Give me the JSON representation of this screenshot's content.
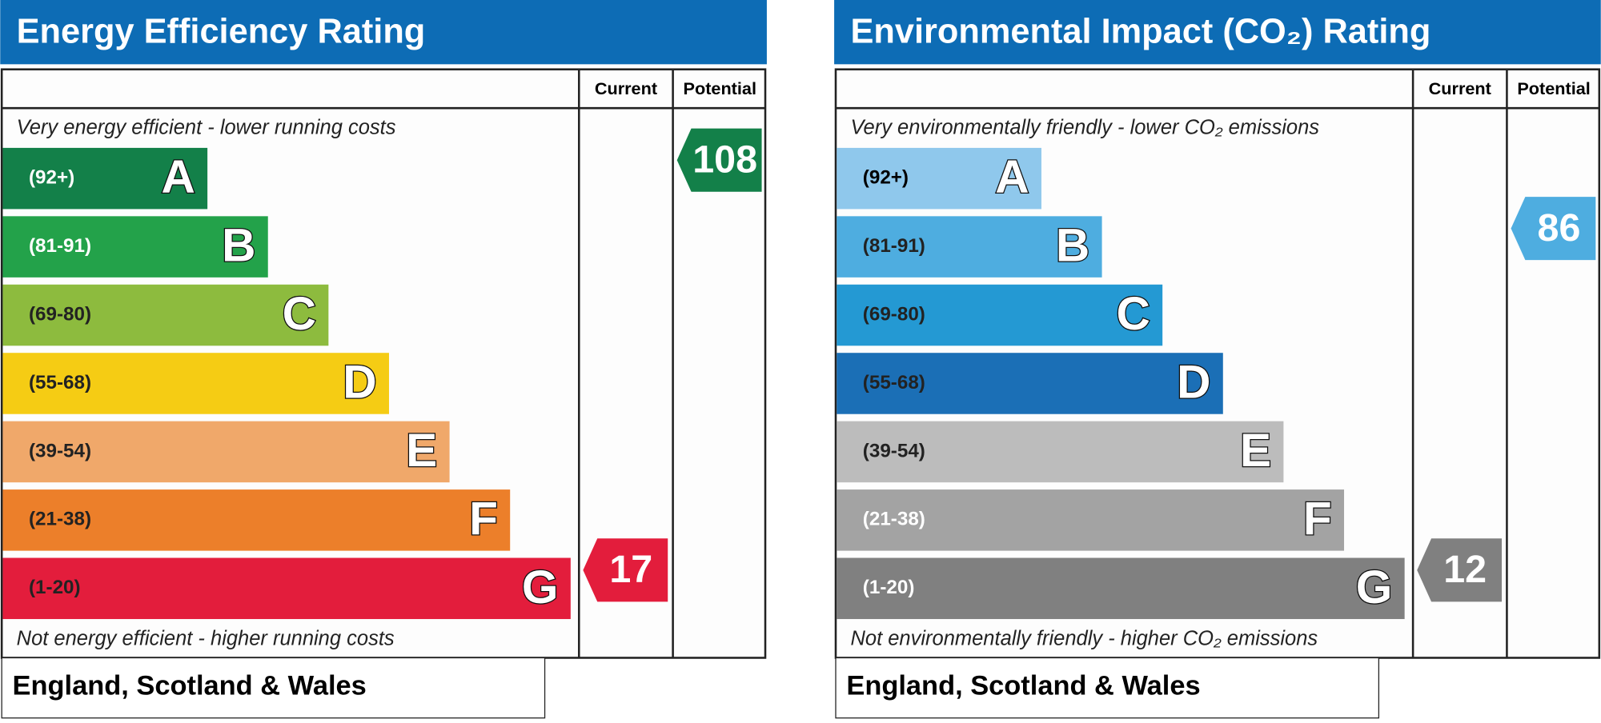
{
  "panels": [
    {
      "title": "Energy Efficiency Rating",
      "headers": [
        "Current",
        "Potential"
      ],
      "top_note": "Very energy efficient - lower running costs",
      "bottom_note": "Not energy efficient - higher running costs",
      "footer": "England, Scotland & Wales",
      "bands": [
        {
          "range": "(92+)",
          "letter": "A",
          "color": "#138049",
          "text_color": "#ffffff"
        },
        {
          "range": "(81-91)",
          "letter": "B",
          "color": "#23a24a",
          "text_color": "#ffffff"
        },
        {
          "range": "(69-80)",
          "letter": "C",
          "color": "#8dbb3e",
          "text_color": "#222222"
        },
        {
          "range": "(55-68)",
          "letter": "D",
          "color": "#f5cc14",
          "text_color": "#222222"
        },
        {
          "range": "(39-54)",
          "letter": "E",
          "color": "#f0a86a",
          "text_color": "#222222"
        },
        {
          "range": "(21-38)",
          "letter": "F",
          "color": "#ec7f2a",
          "text_color": "#222222"
        },
        {
          "range": "(1-20)",
          "letter": "G",
          "color": "#e31d3c",
          "text_color": "#222222"
        }
      ],
      "current": 17,
      "potential": 108
    },
    {
      "title": "Environmental Impact (CO₂) Rating",
      "headers": [
        "Current",
        "Potential"
      ],
      "top_note": "Very environmentally friendly - lower CO₂ emissions",
      "bottom_note": "Not environmentally friendly - higher CO₂ emissions",
      "footer": "England, Scotland & Wales",
      "bands": [
        {
          "range": "(92+)",
          "letter": "A",
          "color": "#8fc8ec",
          "text_color": "#000000"
        },
        {
          "range": "(81-91)",
          "letter": "B",
          "color": "#4eade0",
          "text_color": "#222222"
        },
        {
          "range": "(69-80)",
          "letter": "C",
          "color": "#2499d3",
          "text_color": "#222222"
        },
        {
          "range": "(55-68)",
          "letter": "D",
          "color": "#1b6fb6",
          "text_color": "#222222"
        },
        {
          "range": "(39-54)",
          "letter": "E",
          "color": "#bcbcbc",
          "text_color": "#222222"
        },
        {
          "range": "(21-38)",
          "letter": "F",
          "color": "#a3a3a3",
          "text_color": "#ffffff"
        },
        {
          "range": "(1-20)",
          "letter": "G",
          "color": "#808080",
          "text_color": "#ffffff"
        }
      ],
      "current": 12,
      "potential": 86
    }
  ]
}
